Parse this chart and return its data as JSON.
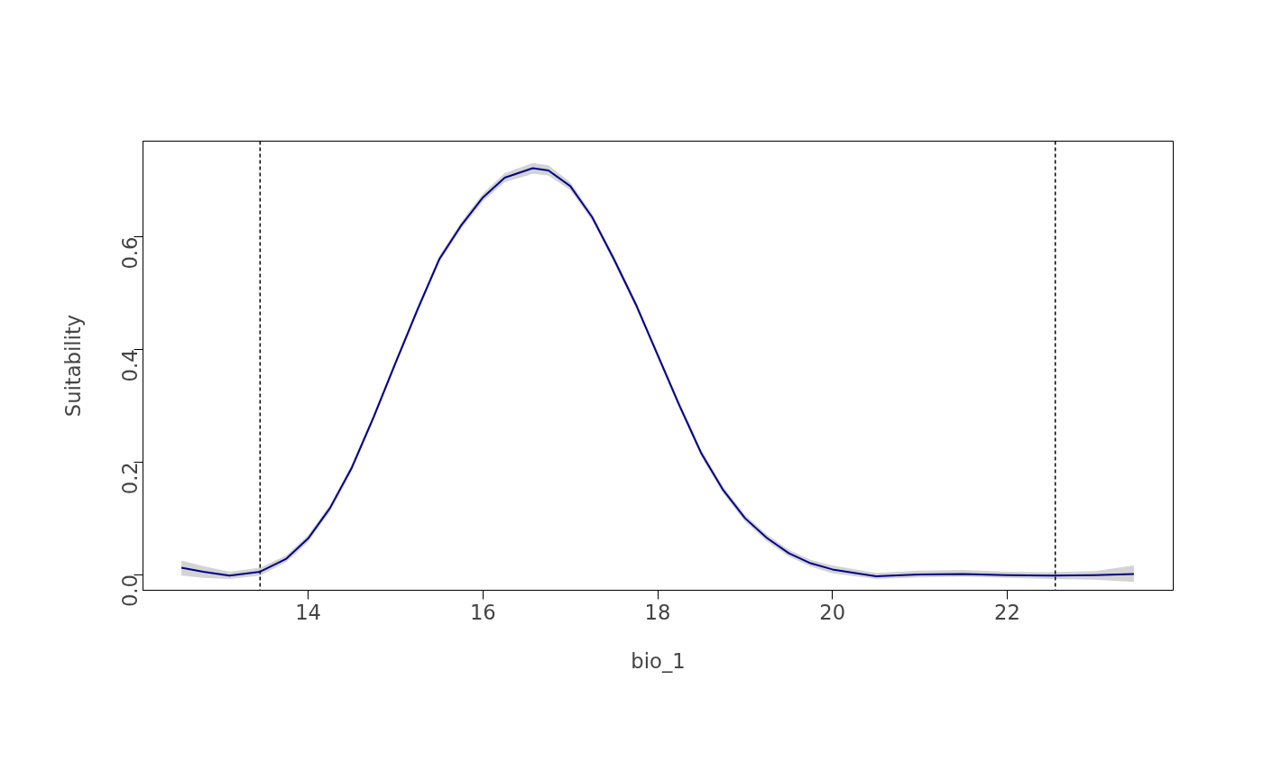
{
  "chart_data": {
    "type": "line",
    "xlabel": "bio_1",
    "ylabel": "Suitability",
    "x": [
      12.55,
      12.8,
      13.1,
      13.45,
      13.75,
      14.0,
      14.25,
      14.5,
      14.75,
      15.0,
      15.25,
      15.5,
      15.75,
      16.0,
      16.25,
      16.57,
      16.75,
      17.0,
      17.25,
      17.5,
      17.75,
      18.0,
      18.25,
      18.5,
      18.75,
      19.0,
      19.25,
      19.5,
      19.75,
      20.0,
      20.5,
      21.0,
      21.5,
      22.0,
      22.5,
      23.0,
      23.45
    ],
    "series": [
      {
        "color": "#00008b",
        "values": [
          0.012,
          0.005,
          -0.002,
          0.005,
          0.028,
          0.064,
          0.118,
          0.19,
          0.28,
          0.376,
          0.47,
          0.56,
          0.62,
          0.67,
          0.705,
          0.722,
          0.718,
          0.69,
          0.635,
          0.56,
          0.48,
          0.39,
          0.3,
          0.215,
          0.15,
          0.1,
          0.065,
          0.038,
          0.02,
          0.009,
          -0.003,
          0.0,
          0.001,
          -0.001,
          -0.002,
          -0.001,
          0.001
        ],
        "lower": [
          -0.002,
          -0.006,
          -0.008,
          -0.002,
          0.022,
          0.058,
          0.112,
          0.184,
          0.274,
          0.37,
          0.464,
          0.554,
          0.614,
          0.663,
          0.697,
          0.712,
          0.709,
          0.683,
          0.629,
          0.554,
          0.474,
          0.384,
          0.294,
          0.209,
          0.144,
          0.094,
          0.059,
          0.032,
          0.014,
          0.002,
          -0.008,
          -0.005,
          -0.004,
          -0.006,
          -0.008,
          -0.009,
          -0.013
        ],
        "upper": [
          0.025,
          0.015,
          0.005,
          0.012,
          0.034,
          0.07,
          0.124,
          0.196,
          0.286,
          0.382,
          0.476,
          0.566,
          0.626,
          0.677,
          0.713,
          0.731,
          0.727,
          0.697,
          0.641,
          0.566,
          0.486,
          0.396,
          0.306,
          0.221,
          0.156,
          0.106,
          0.071,
          0.044,
          0.026,
          0.016,
          0.003,
          0.007,
          0.008,
          0.005,
          0.004,
          0.006,
          0.016
        ]
      }
    ],
    "xlim": [
      12.11,
      23.9
    ],
    "ylim": [
      -0.028,
      0.77
    ],
    "xticks": [
      14,
      16,
      18,
      20,
      22
    ],
    "yticks": [
      {
        "value": 0,
        "label": "0.0"
      },
      {
        "value": 0.2,
        "label": "0.2"
      },
      {
        "value": 0.4,
        "label": "0.4"
      },
      {
        "value": 0.6,
        "label": "0.6"
      }
    ],
    "ref_lines": [
      {
        "axis": "x",
        "value": 13.45,
        "color": "#000000",
        "line_style": "dashed"
      },
      {
        "axis": "x",
        "value": 22.55,
        "color": "#000000",
        "line_style": "dashed"
      }
    ],
    "grid": false,
    "marker": "none",
    "line_style": "solid"
  }
}
